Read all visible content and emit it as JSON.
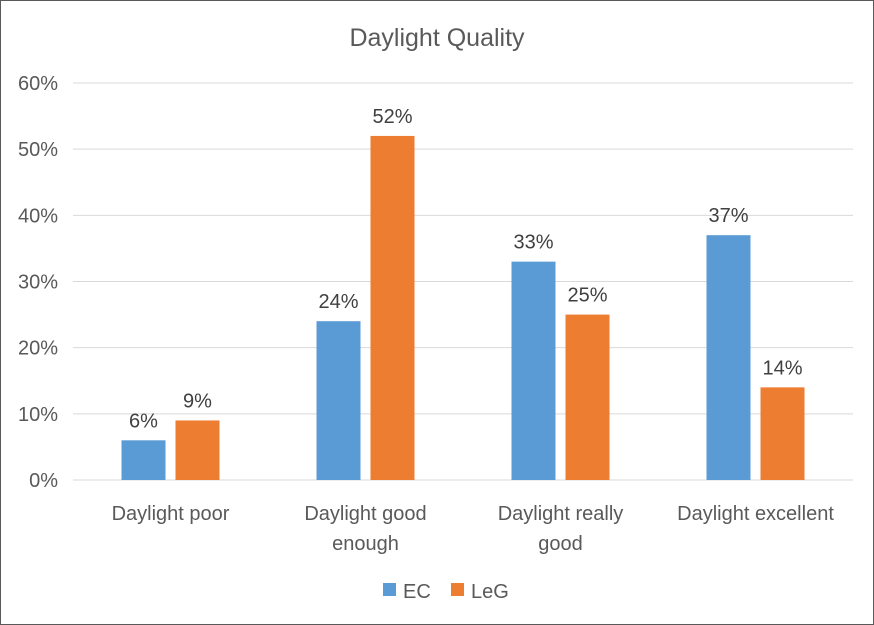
{
  "chart_data": {
    "type": "bar",
    "title": "Daylight Quality",
    "categories": [
      [
        "Daylight poor"
      ],
      [
        "Daylight good",
        "enough"
      ],
      [
        "Daylight really",
        "good"
      ],
      [
        "Daylight excellent"
      ]
    ],
    "series": [
      {
        "name": "EC",
        "color": "#5B9BD5",
        "values": [
          6,
          24,
          33,
          37
        ],
        "labels": [
          "6%",
          "24%",
          "33%",
          "37%"
        ]
      },
      {
        "name": "LeG",
        "color": "#ED7D31",
        "values": [
          9,
          52,
          25,
          14
        ],
        "labels": [
          "9%",
          "52%",
          "25%",
          "14%"
        ]
      }
    ],
    "ylim": [
      0,
      60
    ],
    "yticks": [
      0,
      10,
      20,
      30,
      40,
      50,
      60
    ],
    "ytick_labels": [
      "0%",
      "10%",
      "20%",
      "30%",
      "40%",
      "50%",
      "60%"
    ],
    "grid": true,
    "legend_position": "bottom"
  }
}
